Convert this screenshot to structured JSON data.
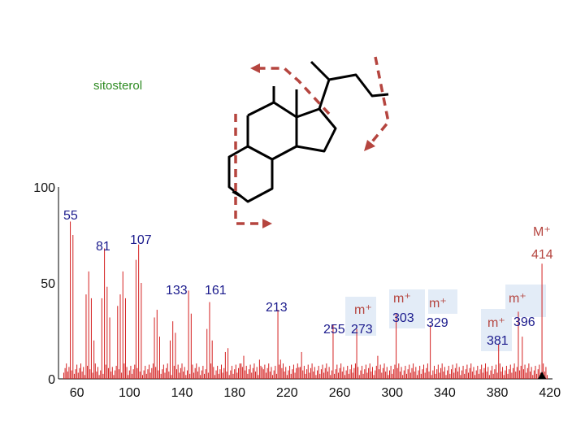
{
  "chart_data": {
    "type": "bar",
    "title": "sitosterol",
    "xlabel": "",
    "ylabel": "",
    "xlim": [
      46,
      422
    ],
    "ylim": [
      0,
      100
    ],
    "x_ticks": [
      "60",
      "100",
      "140",
      "180",
      "220",
      "260",
      "300",
      "340",
      "380",
      "420"
    ],
    "y_ticks": [
      "0",
      "50",
      "100"
    ],
    "grid": false,
    "colors": {
      "peaks": "#d42020",
      "blue_labels": "#1a1a8c",
      "red_labels": "#b5453f",
      "title": "#2e8b22",
      "ion_box": "#e3ecf7",
      "arrows": "#b5453f"
    },
    "peaks": [
      {
        "x": 55,
        "y": 82
      },
      {
        "x": 57,
        "y": 75
      },
      {
        "x": 67,
        "y": 44
      },
      {
        "x": 69,
        "y": 56
      },
      {
        "x": 71,
        "y": 42
      },
      {
        "x": 73,
        "y": 20
      },
      {
        "x": 79,
        "y": 42
      },
      {
        "x": 81,
        "y": 68
      },
      {
        "x": 83,
        "y": 48
      },
      {
        "x": 85,
        "y": 32
      },
      {
        "x": 91,
        "y": 38
      },
      {
        "x": 93,
        "y": 44
      },
      {
        "x": 95,
        "y": 56
      },
      {
        "x": 97,
        "y": 42
      },
      {
        "x": 105,
        "y": 62
      },
      {
        "x": 107,
        "y": 70
      },
      {
        "x": 109,
        "y": 50
      },
      {
        "x": 119,
        "y": 32
      },
      {
        "x": 121,
        "y": 36
      },
      {
        "x": 123,
        "y": 22
      },
      {
        "x": 131,
        "y": 20
      },
      {
        "x": 133,
        "y": 30
      },
      {
        "x": 135,
        "y": 24
      },
      {
        "x": 145,
        "y": 46
      },
      {
        "x": 147,
        "y": 34
      },
      {
        "x": 159,
        "y": 26
      },
      {
        "x": 161,
        "y": 40
      },
      {
        "x": 163,
        "y": 20
      },
      {
        "x": 173,
        "y": 14
      },
      {
        "x": 175,
        "y": 16
      },
      {
        "x": 185,
        "y": 8
      },
      {
        "x": 187,
        "y": 12
      },
      {
        "x": 199,
        "y": 10
      },
      {
        "x": 201,
        "y": 6
      },
      {
        "x": 213,
        "y": 36
      },
      {
        "x": 215,
        "y": 10
      },
      {
        "x": 229,
        "y": 6
      },
      {
        "x": 231,
        "y": 14
      },
      {
        "x": 255,
        "y": 28
      },
      {
        "x": 273,
        "y": 26
      },
      {
        "x": 289,
        "y": 12
      },
      {
        "x": 303,
        "y": 34
      },
      {
        "x": 329,
        "y": 28
      },
      {
        "x": 381,
        "y": 18
      },
      {
        "x": 396,
        "y": 35
      },
      {
        "x": 399,
        "y": 22
      },
      {
        "x": 414,
        "y": 60
      }
    ],
    "peak_labels": [
      {
        "mz": 55,
        "text": "55",
        "color": "blue"
      },
      {
        "mz": 81,
        "text": "81",
        "color": "blue"
      },
      {
        "mz": 107,
        "text": "107",
        "color": "blue"
      },
      {
        "mz": 133,
        "text": "133",
        "color": "blue"
      },
      {
        "mz": 161,
        "text": "161",
        "color": "blue"
      },
      {
        "mz": 213,
        "text": "213",
        "color": "blue"
      },
      {
        "mz": 255,
        "text": "255",
        "color": "blue"
      },
      {
        "mz": 273,
        "text": "273",
        "color": "blue"
      },
      {
        "mz": 303,
        "text": "303",
        "color": "blue"
      },
      {
        "mz": 329,
        "text": "329",
        "color": "blue"
      },
      {
        "mz": 381,
        "text": "381",
        "color": "blue"
      },
      {
        "mz": 396,
        "text": "396",
        "color": "blue"
      },
      {
        "mz": 414,
        "text": "414",
        "color": "red"
      }
    ],
    "annotations": [
      {
        "text": "M⁺",
        "color": "red"
      },
      {
        "text": "m⁺",
        "color": "red"
      },
      {
        "text": "m⁺",
        "color": "red"
      },
      {
        "text": "m⁺",
        "color": "red"
      },
      {
        "text": "m⁺",
        "color": "red"
      },
      {
        "text": "m⁺",
        "color": "red"
      }
    ],
    "inset": "sitosterol structure with dashed fragmentation arrows"
  }
}
